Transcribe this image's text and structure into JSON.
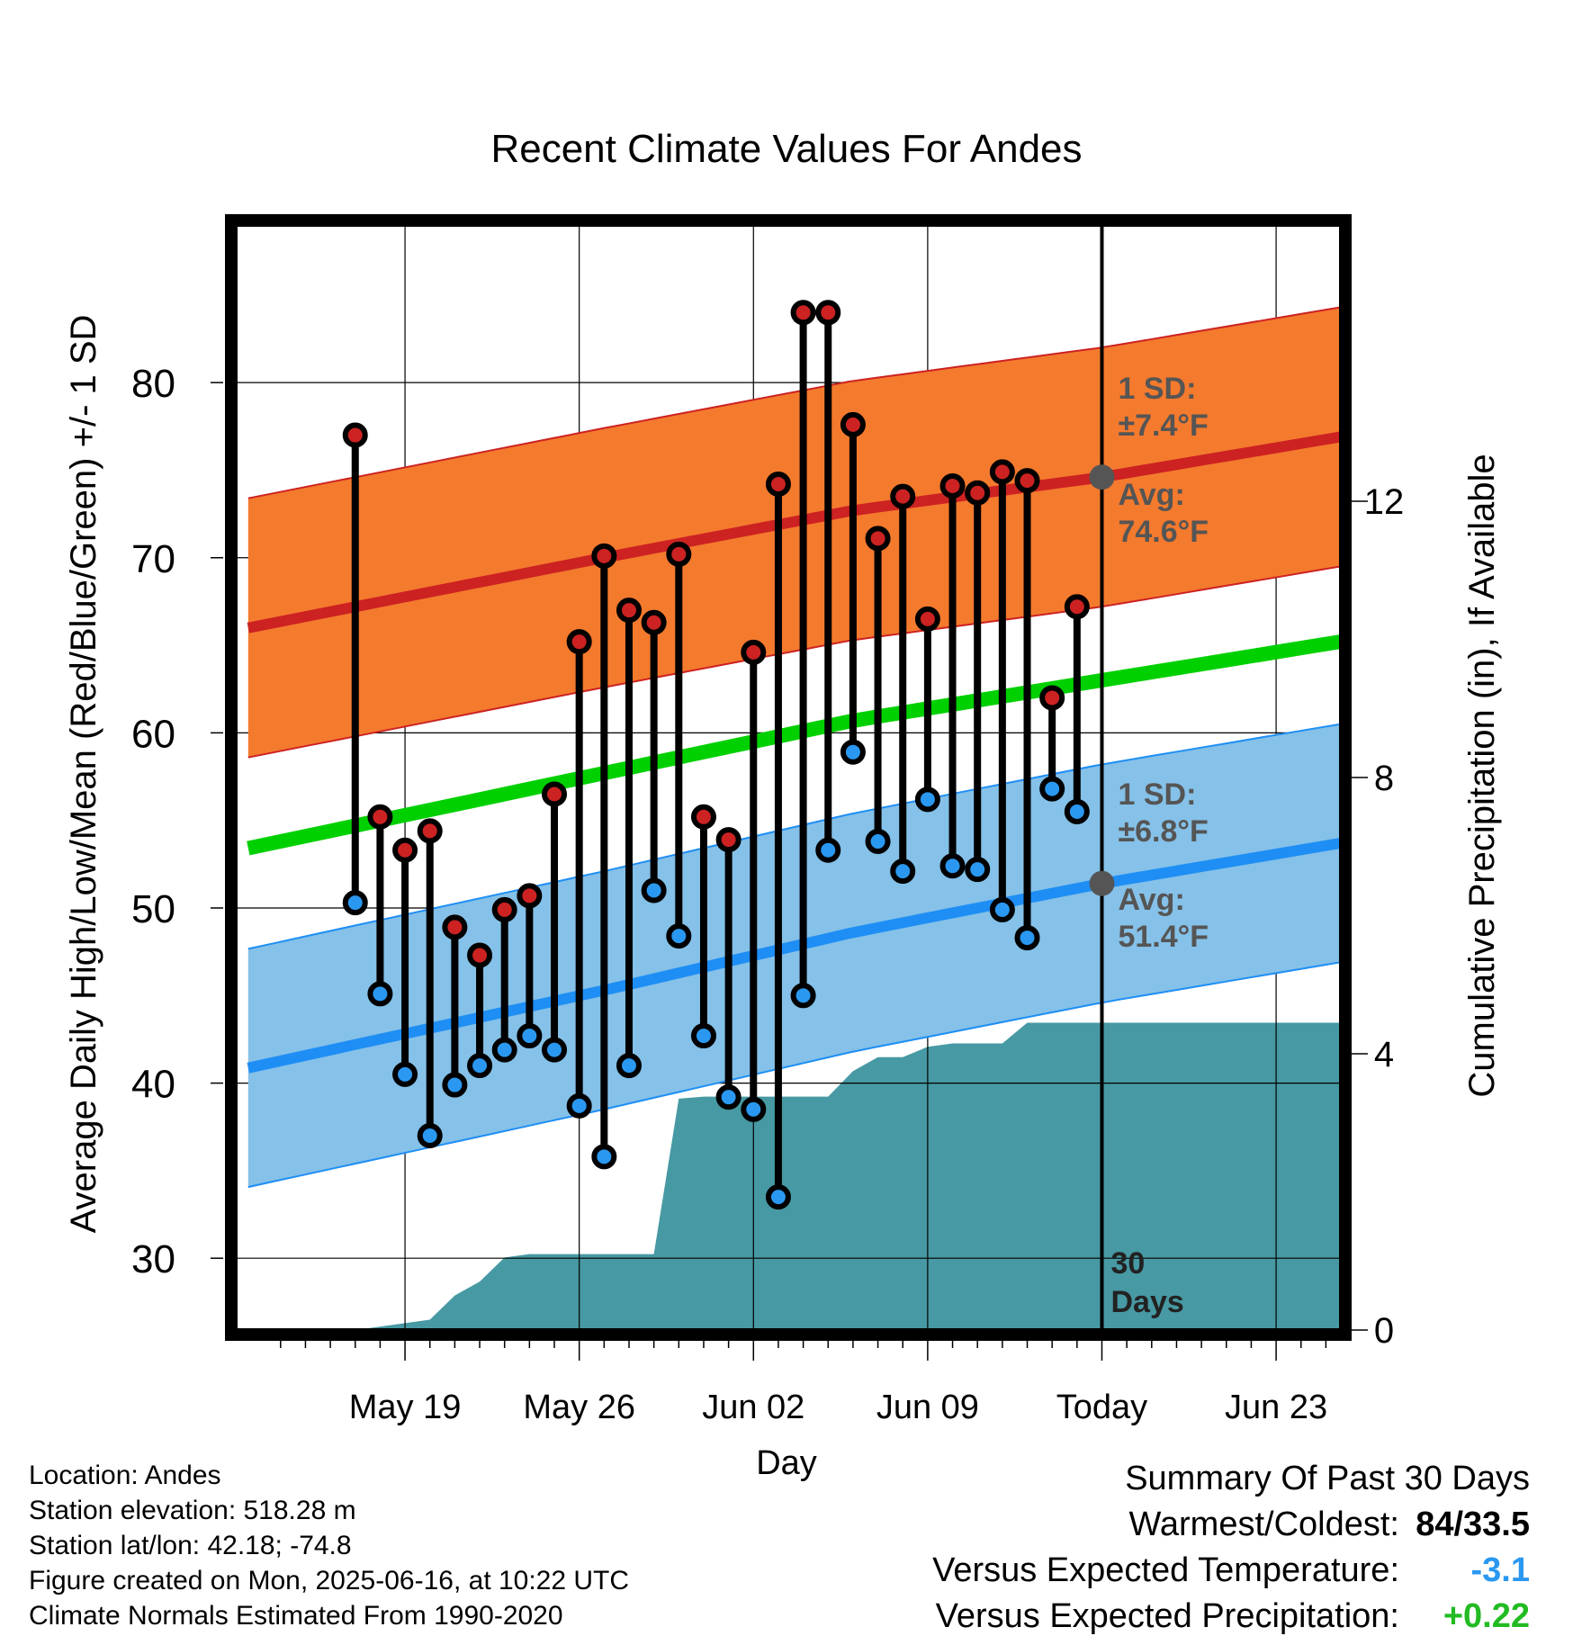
{
  "chart_data": {
    "type": "line",
    "title": "Recent Climate Values For Andes",
    "xlabel": "Day",
    "ylabel": "Average Daily High/Low/Mean (Red/Blue/Green) +/- 1 SD",
    "y2label": "Cumulative Precipitation (in), If Available",
    "x_tick_labels": [
      "May 19",
      "May 26",
      "Jun 02",
      "Jun 09",
      "Today",
      "Jun 23"
    ],
    "y_ticks": [
      30,
      40,
      50,
      60,
      70,
      80
    ],
    "y2_ticks": [
      0,
      4,
      8,
      12
    ],
    "ylim": [
      25.9,
      89
    ],
    "y2lim": [
      0,
      16
    ],
    "xlim_days": [
      -34.8,
      9.6
    ],
    "today_annotation": [
      "30",
      "Days"
    ],
    "high_sd_label": [
      "1 SD:",
      "±7.4°F"
    ],
    "high_avg_label": [
      "Avg:",
      "74.6°F"
    ],
    "low_sd_label": [
      "1 SD:",
      "±6.8°F"
    ],
    "low_avg_label": [
      "Avg:",
      "51.4°F"
    ],
    "normal_high": {
      "days": [
        -30,
        -20,
        -10,
        0,
        10
      ],
      "values": [
        67.2,
        70.0,
        72.7,
        74.6,
        77.0
      ]
    },
    "normal_high_sd": 7.4,
    "normal_low": {
      "days": [
        -30,
        -20,
        -10,
        0,
        10
      ],
      "values": [
        42.2,
        45.3,
        48.6,
        51.4,
        53.8
      ]
    },
    "normal_low_sd": 6.8,
    "normal_mean": {
      "days": [
        -30,
        -20,
        -10,
        0,
        10
      ],
      "values": [
        54.7,
        57.7,
        60.7,
        63.0,
        65.3
      ]
    },
    "series": [
      {
        "name": "High",
        "values": [
          77.0,
          55.2,
          53.3,
          54.4,
          48.9,
          47.3,
          49.9,
          50.7,
          56.5,
          65.2,
          70.1,
          67.0,
          66.3,
          70.2,
          55.2,
          53.9,
          64.6,
          74.2,
          84.0,
          84.0,
          77.6,
          71.1,
          73.5,
          66.5,
          74.1,
          73.7,
          74.9,
          74.4,
          62.0,
          67.2
        ]
      },
      {
        "name": "Low",
        "values": [
          50.3,
          45.1,
          40.5,
          37.0,
          39.9,
          41.0,
          41.9,
          42.7,
          41.9,
          38.7,
          35.8,
          41.0,
          51.0,
          48.4,
          42.7,
          39.2,
          38.5,
          33.5,
          45.0,
          53.3,
          58.9,
          53.8,
          52.1,
          56.2,
          52.4,
          52.2,
          49.9,
          48.3,
          56.8,
          55.5
        ]
      }
    ],
    "precip_cumulative": {
      "days": [
        -31,
        -30,
        -27,
        -26,
        -25,
        -24,
        -23,
        -22,
        -21,
        -20,
        -19,
        -18,
        -17,
        -16,
        -15,
        -14,
        -13,
        -12,
        -11,
        -10,
        -9,
        -8,
        -7,
        -6,
        -5,
        -4,
        -3,
        -2,
        -1,
        0,
        5,
        9.6
      ],
      "values": [
        0,
        0,
        0.15,
        0.5,
        0.7,
        1.05,
        1.1,
        1.1,
        1.1,
        1.1,
        1.1,
        1.1,
        3.35,
        3.38,
        3.38,
        3.38,
        3.38,
        3.38,
        3.38,
        3.75,
        3.95,
        3.95,
        4.1,
        4.15,
        4.15,
        4.15,
        4.45,
        4.45,
        4.45,
        4.45,
        4.45,
        4.45
      ]
    }
  },
  "info": {
    "location": "Location: Andes",
    "elevation": "Station elevation: 518.28 m",
    "latlon": "Station lat/lon: 42.18; -74.8",
    "created": "Figure created on Mon, 2025-06-16, at 10:22 UTC",
    "normals": "Climate Normals Estimated From 1990-2020"
  },
  "summary": {
    "title": "Summary Of Past 30 Days",
    "warmest_label": "Warmest/Coldest:",
    "warmest_value": "84/33.5",
    "temp_label": "Versus Expected Temperature:",
    "temp_value": "-3.1",
    "precip_label": "Versus Expected Precipitation:",
    "precip_value": "+0.22"
  },
  "colors": {
    "high_band": "#f47a2e",
    "high_line": "#cc2222",
    "low_band": "#85c1e8",
    "low_line": "#1e8ef5",
    "mean_line": "#00d000",
    "precip": "#4799a3",
    "high_dot": "#cc2222",
    "low_dot": "#2a98f0",
    "annotation": "#555555",
    "temp_value": "#2a98f0",
    "precip_value": "#22bb22"
  }
}
